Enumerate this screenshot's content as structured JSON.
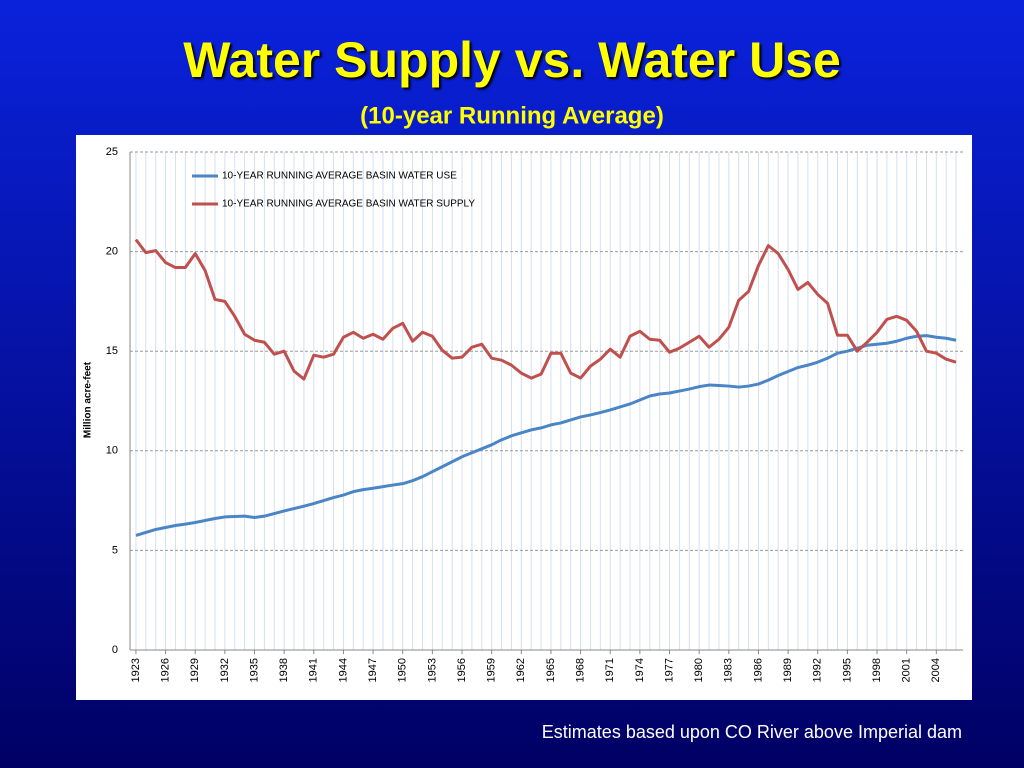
{
  "chart_data": {
    "type": "line",
    "title": "Water Supply vs. Water Use",
    "subtitle": "(10-year Running Average)",
    "y_label": "Million acre-feet",
    "note": "Estimates based upon CO River above Imperial dam",
    "x": [
      1923,
      1924,
      1925,
      1926,
      1927,
      1928,
      1929,
      1930,
      1931,
      1932,
      1933,
      1934,
      1935,
      1936,
      1937,
      1938,
      1939,
      1940,
      1941,
      1942,
      1943,
      1944,
      1945,
      1946,
      1947,
      1948,
      1949,
      1950,
      1951,
      1952,
      1953,
      1954,
      1955,
      1956,
      1957,
      1958,
      1959,
      1960,
      1961,
      1962,
      1963,
      1964,
      1965,
      1966,
      1967,
      1968,
      1969,
      1970,
      1971,
      1972,
      1973,
      1974,
      1975,
      1976,
      1977,
      1978,
      1979,
      1980,
      1981,
      1982,
      1983,
      1984,
      1985,
      1986,
      1987,
      1988,
      1989,
      1990,
      1991,
      1992,
      1993,
      1994,
      1995,
      1996,
      1997,
      1998,
      1999,
      2000,
      2001,
      2002,
      2003,
      2004,
      2005,
      2006
    ],
    "series": [
      {
        "name": "10-YEAR RUNNING AVERAGE BASIN WATER USE",
        "color": "#4a86c6",
        "values": [
          5.75,
          5.9,
          6.05,
          6.15,
          6.25,
          6.32,
          6.4,
          6.5,
          6.6,
          6.68,
          6.7,
          6.72,
          6.65,
          6.72,
          6.85,
          6.98,
          7.1,
          7.22,
          7.35,
          7.5,
          7.65,
          7.78,
          7.95,
          8.05,
          8.12,
          8.2,
          8.28,
          8.35,
          8.5,
          8.7,
          8.95,
          9.2,
          9.45,
          9.7,
          9.9,
          10.1,
          10.3,
          10.55,
          10.75,
          10.9,
          11.05,
          11.15,
          11.3,
          11.4,
          11.55,
          11.7,
          11.8,
          11.92,
          12.05,
          12.2,
          12.35,
          12.55,
          12.75,
          12.85,
          12.9,
          13.0,
          13.1,
          13.22,
          13.3,
          13.28,
          13.25,
          13.2,
          13.25,
          13.35,
          13.55,
          13.78,
          13.98,
          14.18,
          14.3,
          14.45,
          14.65,
          14.9,
          15.0,
          15.15,
          15.3,
          15.35,
          15.4,
          15.5,
          15.65,
          15.75,
          15.78,
          15.7,
          15.65,
          15.55
        ]
      },
      {
        "name": "10-YEAR RUNNING AVERAGE BASIN WATER SUPPLY",
        "color": "#c0504d",
        "values": [
          20.6,
          19.95,
          20.05,
          19.45,
          19.2,
          19.2,
          19.9,
          19.05,
          17.6,
          17.5,
          16.75,
          15.85,
          15.55,
          15.45,
          14.85,
          15.0,
          14.0,
          13.6,
          14.8,
          14.7,
          14.85,
          15.7,
          15.95,
          15.65,
          15.85,
          15.6,
          16.15,
          16.4,
          15.5,
          15.95,
          15.75,
          15.05,
          14.65,
          14.7,
          15.2,
          15.35,
          14.65,
          14.55,
          14.3,
          13.9,
          13.65,
          13.85,
          14.9,
          14.9,
          13.9,
          13.65,
          14.25,
          14.6,
          15.1,
          14.7,
          15.75,
          16.0,
          15.6,
          15.55,
          14.95,
          15.15,
          15.45,
          15.75,
          15.2,
          15.6,
          16.2,
          17.55,
          18.0,
          19.3,
          20.3,
          19.9,
          19.1,
          18.1,
          18.45,
          17.85,
          17.4,
          15.8,
          15.8,
          15.0,
          15.45,
          15.95,
          16.6,
          16.75,
          16.55,
          16.0,
          15.0,
          14.9,
          14.6,
          14.45
        ]
      }
    ],
    "xlim": [
      1922.4,
      2006.7
    ],
    "xticks": [
      1923,
      1926,
      1929,
      1932,
      1935,
      1938,
      1941,
      1944,
      1947,
      1950,
      1953,
      1956,
      1959,
      1962,
      1965,
      1968,
      1971,
      1974,
      1977,
      1980,
      1983,
      1986,
      1989,
      1992,
      1995,
      1998,
      2001,
      2004
    ],
    "ylim": [
      0,
      25
    ],
    "yticks": [
      0,
      5,
      10,
      15,
      20,
      25
    ],
    "grid": true
  }
}
